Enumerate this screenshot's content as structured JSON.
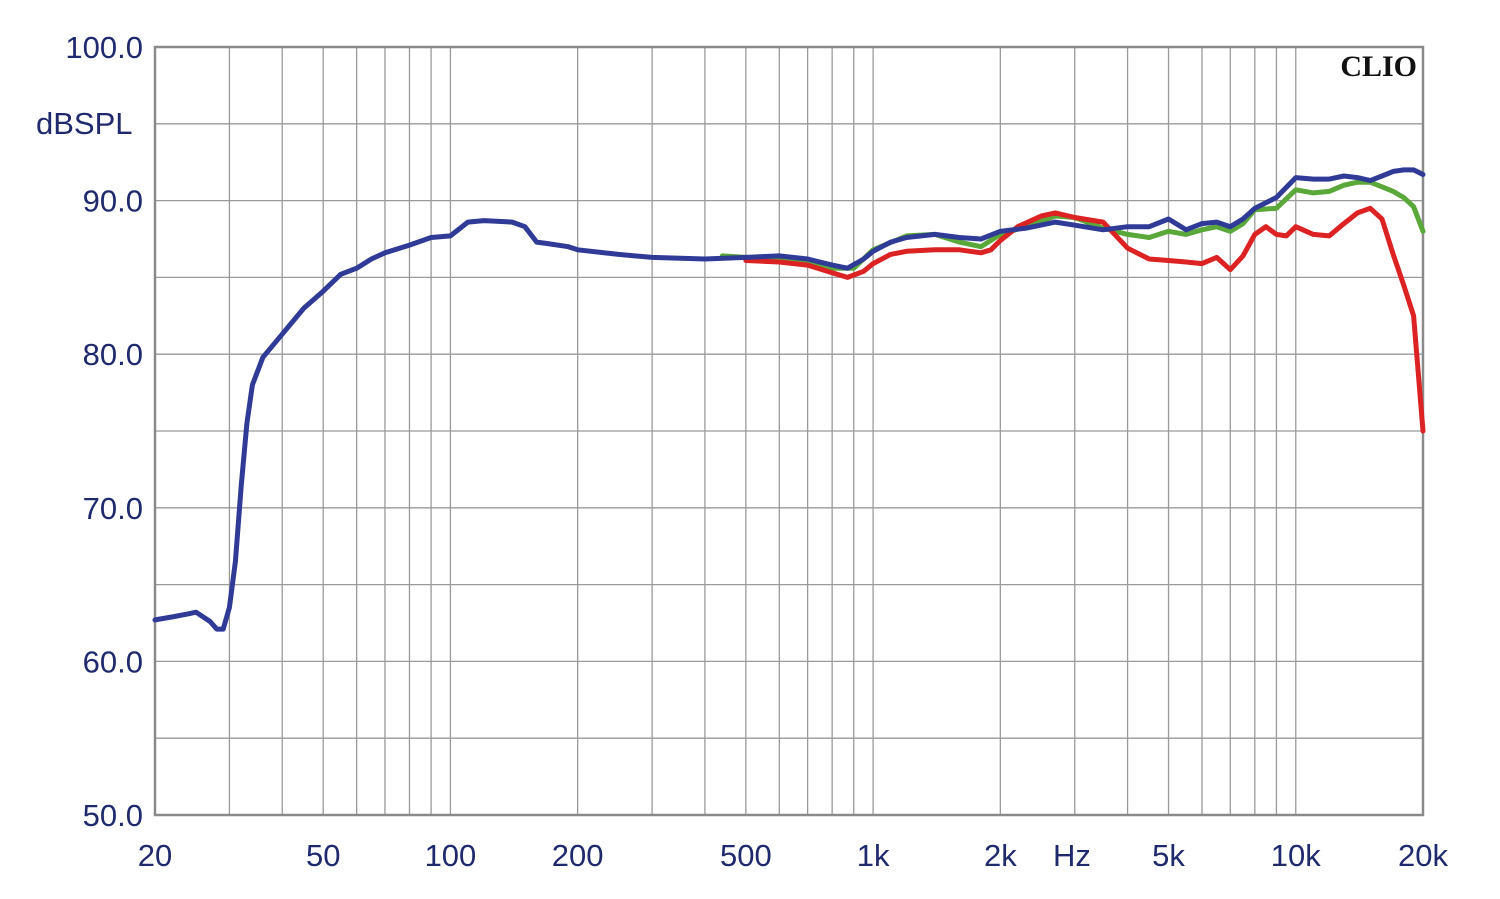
{
  "chart_data": {
    "type": "line",
    "brand_label": "CLIO",
    "ylabel": "dBSPL",
    "xlabel": "Hz",
    "x_scale": "log",
    "xlim": [
      20,
      20000
    ],
    "ylim": [
      50,
      100
    ],
    "grid": true,
    "y_ticks": [
      {
        "value": 100,
        "label": "100.0"
      },
      {
        "value": 90,
        "label": "90.0"
      },
      {
        "value": 80,
        "label": "80.0"
      },
      {
        "value": 70,
        "label": "70.0"
      },
      {
        "value": 60,
        "label": "60.0"
      },
      {
        "value": 50,
        "label": "50.0"
      }
    ],
    "x_ticks": [
      {
        "value": 20,
        "label": "20"
      },
      {
        "value": 50,
        "label": "50"
      },
      {
        "value": 100,
        "label": "100"
      },
      {
        "value": 200,
        "label": "200"
      },
      {
        "value": 500,
        "label": "500"
      },
      {
        "value": 1000,
        "label": "1k"
      },
      {
        "value": 2000,
        "label": "2k"
      },
      {
        "value": 5000,
        "label": "5k"
      },
      {
        "value": 10000,
        "label": "10k"
      },
      {
        "value": 20000,
        "label": "20k"
      }
    ],
    "series": [
      {
        "color": "#5aa83a",
        "points": [
          [
            440,
            86.4
          ],
          [
            500,
            86.3
          ],
          [
            600,
            86.2
          ],
          [
            700,
            86.0
          ],
          [
            800,
            85.6
          ],
          [
            900,
            85.6
          ],
          [
            1000,
            86.8
          ],
          [
            1200,
            87.7
          ],
          [
            1400,
            87.8
          ],
          [
            1600,
            87.3
          ],
          [
            1800,
            87.0
          ],
          [
            2000,
            87.8
          ],
          [
            2300,
            88.3
          ],
          [
            2700,
            89.0
          ],
          [
            3000,
            88.9
          ],
          [
            3500,
            88.2
          ],
          [
            4000,
            87.8
          ],
          [
            4500,
            87.6
          ],
          [
            5000,
            88.0
          ],
          [
            5500,
            87.8
          ],
          [
            6000,
            88.1
          ],
          [
            6500,
            88.3
          ],
          [
            7000,
            88.0
          ],
          [
            7500,
            88.5
          ],
          [
            8000,
            89.4
          ],
          [
            9000,
            89.5
          ],
          [
            10000,
            90.7
          ],
          [
            11000,
            90.5
          ],
          [
            12000,
            90.6
          ],
          [
            13000,
            91.0
          ],
          [
            14000,
            91.2
          ],
          [
            15000,
            91.2
          ],
          [
            16000,
            90.9
          ],
          [
            17000,
            90.6
          ],
          [
            18000,
            90.2
          ],
          [
            19000,
            89.6
          ],
          [
            20000,
            88.0
          ]
        ]
      },
      {
        "color": "#dc2222",
        "points": [
          [
            500,
            86.1
          ],
          [
            600,
            86.0
          ],
          [
            700,
            85.8
          ],
          [
            800,
            85.3
          ],
          [
            870,
            85.0
          ],
          [
            950,
            85.4
          ],
          [
            1000,
            85.9
          ],
          [
            1100,
            86.5
          ],
          [
            1200,
            86.7
          ],
          [
            1400,
            86.8
          ],
          [
            1600,
            86.8
          ],
          [
            1800,
            86.6
          ],
          [
            1900,
            86.8
          ],
          [
            2000,
            87.4
          ],
          [
            2200,
            88.3
          ],
          [
            2500,
            89.0
          ],
          [
            2700,
            89.2
          ],
          [
            3000,
            88.9
          ],
          [
            3500,
            88.6
          ],
          [
            4000,
            86.9
          ],
          [
            4500,
            86.2
          ],
          [
            5000,
            86.1
          ],
          [
            5500,
            86.0
          ],
          [
            6000,
            85.9
          ],
          [
            6500,
            86.3
          ],
          [
            7000,
            85.5
          ],
          [
            7500,
            86.4
          ],
          [
            8000,
            87.8
          ],
          [
            8500,
            88.3
          ],
          [
            9000,
            87.8
          ],
          [
            9500,
            87.7
          ],
          [
            10000,
            88.3
          ],
          [
            11000,
            87.8
          ],
          [
            12000,
            87.7
          ],
          [
            13000,
            88.5
          ],
          [
            14000,
            89.2
          ],
          [
            15000,
            89.5
          ],
          [
            16000,
            88.8
          ],
          [
            17000,
            86.5
          ],
          [
            18000,
            84.5
          ],
          [
            19000,
            82.5
          ],
          [
            20000,
            75.0
          ]
        ]
      },
      {
        "color": "#2f3b96",
        "points": [
          [
            20,
            62.7
          ],
          [
            22,
            62.9
          ],
          [
            24,
            63.1
          ],
          [
            25,
            63.2
          ],
          [
            27,
            62.6
          ],
          [
            28,
            62.1
          ],
          [
            29,
            62.1
          ],
          [
            30,
            63.5
          ],
          [
            31,
            66.5
          ],
          [
            32,
            71.5
          ],
          [
            33,
            75.5
          ],
          [
            34,
            78.0
          ],
          [
            36,
            79.8
          ],
          [
            40,
            81.3
          ],
          [
            45,
            83.0
          ],
          [
            50,
            84.1
          ],
          [
            55,
            85.2
          ],
          [
            60,
            85.6
          ],
          [
            65,
            86.2
          ],
          [
            70,
            86.6
          ],
          [
            80,
            87.1
          ],
          [
            90,
            87.6
          ],
          [
            100,
            87.7
          ],
          [
            110,
            88.6
          ],
          [
            120,
            88.7
          ],
          [
            140,
            88.6
          ],
          [
            150,
            88.3
          ],
          [
            160,
            87.3
          ],
          [
            170,
            87.2
          ],
          [
            190,
            87.0
          ],
          [
            200,
            86.8
          ],
          [
            250,
            86.5
          ],
          [
            300,
            86.3
          ],
          [
            400,
            86.2
          ],
          [
            500,
            86.3
          ],
          [
            600,
            86.4
          ],
          [
            700,
            86.2
          ],
          [
            800,
            85.8
          ],
          [
            870,
            85.6
          ],
          [
            950,
            86.2
          ],
          [
            1000,
            86.7
          ],
          [
            1100,
            87.3
          ],
          [
            1200,
            87.6
          ],
          [
            1400,
            87.8
          ],
          [
            1600,
            87.6
          ],
          [
            1800,
            87.5
          ],
          [
            2000,
            88.0
          ],
          [
            2300,
            88.2
          ],
          [
            2700,
            88.6
          ],
          [
            3000,
            88.4
          ],
          [
            3500,
            88.1
          ],
          [
            4000,
            88.3
          ],
          [
            4500,
            88.3
          ],
          [
            5000,
            88.8
          ],
          [
            5500,
            88.1
          ],
          [
            6000,
            88.5
          ],
          [
            6500,
            88.6
          ],
          [
            7000,
            88.3
          ],
          [
            7500,
            88.8
          ],
          [
            8000,
            89.5
          ],
          [
            9000,
            90.2
          ],
          [
            10000,
            91.5
          ],
          [
            11000,
            91.4
          ],
          [
            12000,
            91.4
          ],
          [
            13000,
            91.6
          ],
          [
            14000,
            91.5
          ],
          [
            15000,
            91.3
          ],
          [
            16000,
            91.6
          ],
          [
            17000,
            91.9
          ],
          [
            18000,
            92.0
          ],
          [
            19000,
            92.0
          ],
          [
            20000,
            91.7
          ]
        ]
      }
    ]
  }
}
